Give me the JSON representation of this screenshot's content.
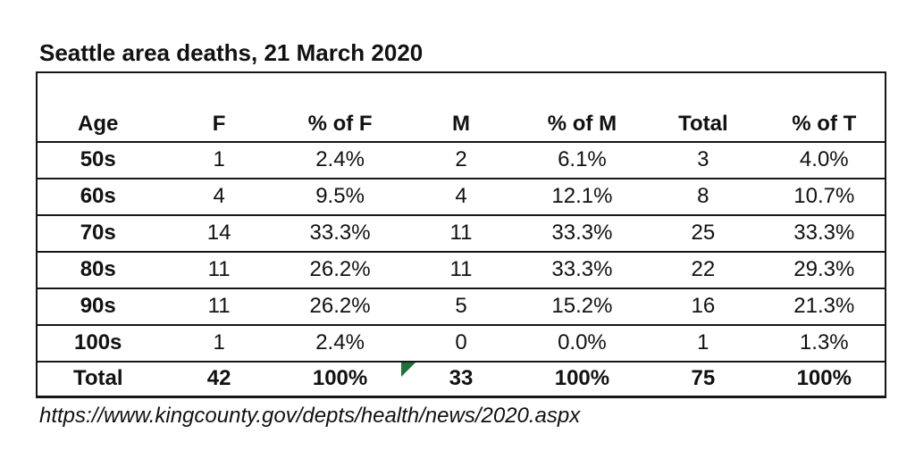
{
  "title": "Seattle area deaths, 21 March 2020",
  "source_url": "https://www.kingcounty.gov/depts/health/news/2020.aspx",
  "colors": {
    "background": "#ffffff",
    "text": "#111111",
    "border": "#161616",
    "error_indicator_green": "#1e7139"
  },
  "table": {
    "columns": [
      "Age",
      "F",
      "% of F",
      "M",
      "% of M",
      "Total",
      "% of T"
    ],
    "rows": [
      [
        "50s",
        "1",
        "2.4%",
        "2",
        "6.1%",
        "3",
        "4.0%"
      ],
      [
        "60s",
        "4",
        "9.5%",
        "4",
        "12.1%",
        "8",
        "10.7%"
      ],
      [
        "70s",
        "14",
        "33.3%",
        "11",
        "33.3%",
        "25",
        "33.3%"
      ],
      [
        "80s",
        "11",
        "26.2%",
        "11",
        "33.3%",
        "22",
        "29.3%"
      ],
      [
        "90s",
        "11",
        "26.2%",
        "5",
        "15.2%",
        "16",
        "21.3%"
      ],
      [
        "100s",
        "1",
        "2.4%",
        "0",
        "0.0%",
        "1",
        "1.3%"
      ]
    ],
    "total_row": [
      "Total",
      "42",
      "100%",
      "33",
      "100%",
      "75",
      "100%"
    ],
    "error_indicator": {
      "icon": "green-triangle",
      "row": "Total",
      "column": "M",
      "cell_value": "33"
    }
  }
}
